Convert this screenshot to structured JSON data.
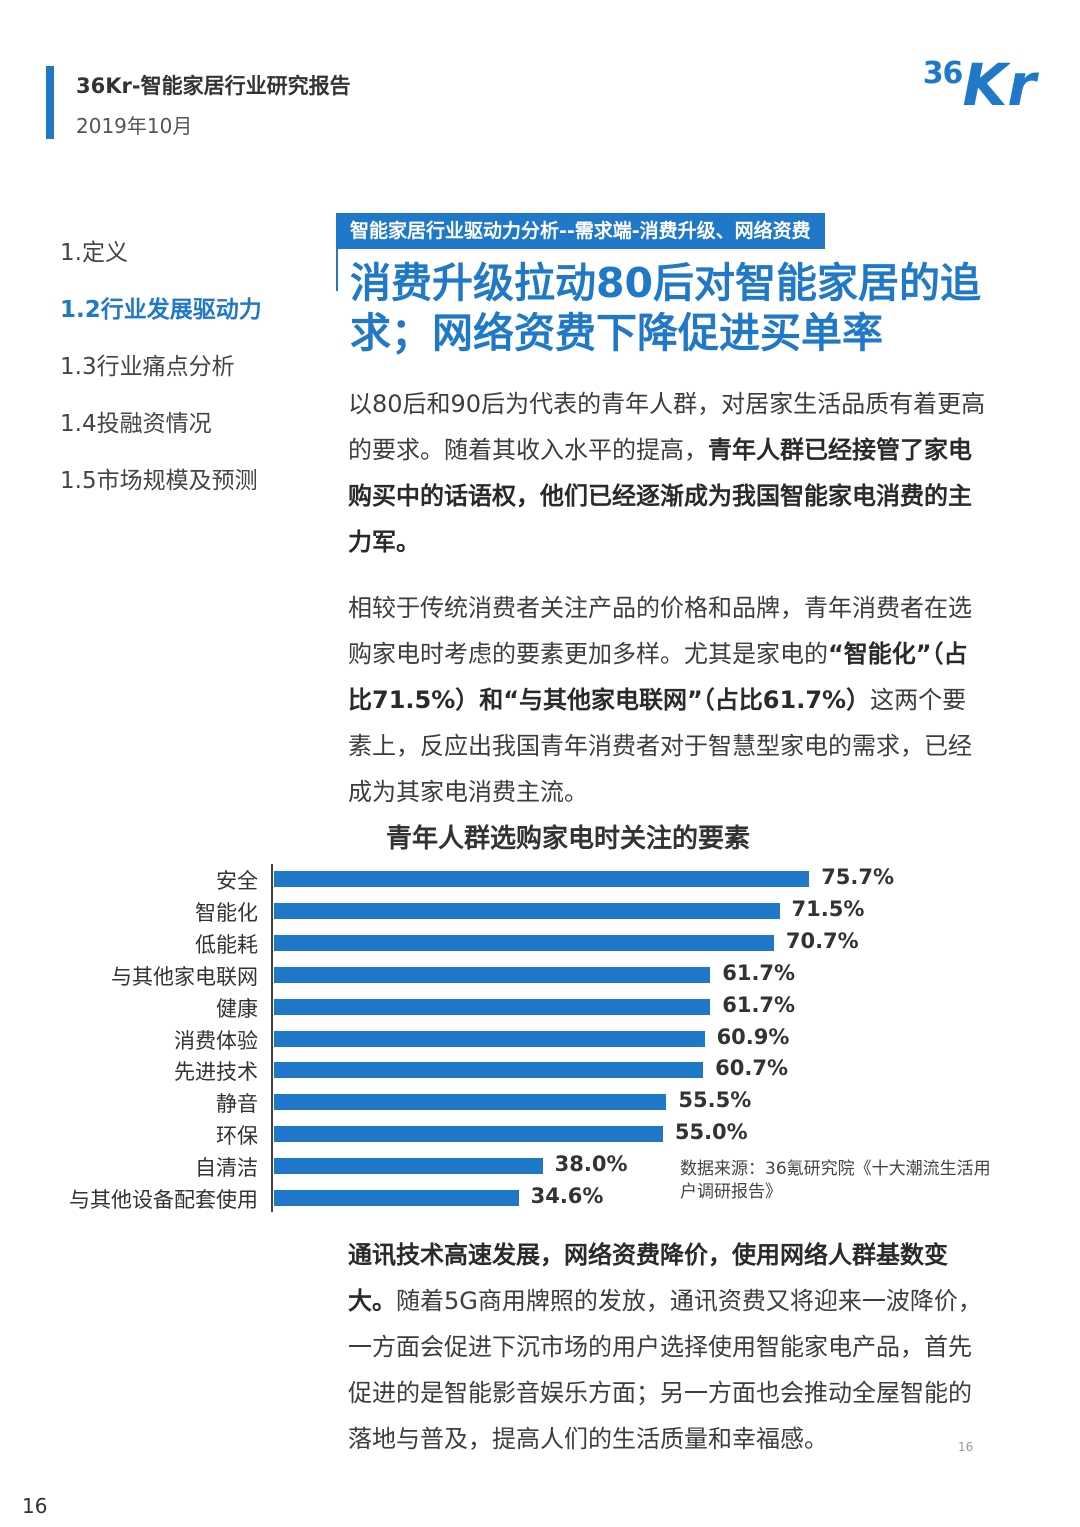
{
  "header": {
    "title": "36Kr-智能家居行业研究报告",
    "date": "2019年10月",
    "logo_number": "36",
    "logo_letters": "Kr"
  },
  "toc": {
    "items": [
      {
        "label": "1.定义"
      },
      {
        "label": "1.2行业发展驱动力"
      },
      {
        "label": "1.3行业痛点分析"
      },
      {
        "label": "1.4投融资情况"
      },
      {
        "label": "1.5市场规模及预测"
      }
    ],
    "active_index": 1
  },
  "section_tag": "智能家居行业驱动力分析--需求端-消费升级、网络资费",
  "headline": "消费升级拉动80后对智能家居的追求；网络资费下降促进买单率",
  "para1": {
    "plain": "以80后和90后为代表的青年人群，对居家生活品质有着更高的要求。随着其收入水平的提高，",
    "bold": "青年人群已经接管了家电购买中的话语权，他们已经逐渐成为我国智能家电消费的主力军。"
  },
  "para2": {
    "t1": "相较于传统消费者关注产品的价格和品牌，青年消费者在选购家电时考虑的要素更加多样。尤其是家电的",
    "b1": "“智能化”（占比71.5%）和“与其他家电联网”（占比61.7%）",
    "t2": "这两个要素上，反应出我国青年消费者对于智慧型家电的需求，已经成为其家电消费主流。"
  },
  "chart_data": {
    "type": "bar",
    "orientation": "horizontal",
    "title": "青年人群选购家电时关注的要素",
    "categories": [
      "安全",
      "智能化",
      "低能耗",
      "与其他家电联网",
      "健康",
      "消费体验",
      "先进技术",
      "静音",
      "环保",
      "自清洁",
      "与其他设备配套使用"
    ],
    "values": [
      75.7,
      71.5,
      70.7,
      61.7,
      61.7,
      60.9,
      60.7,
      55.5,
      55.0,
      38.0,
      34.6
    ],
    "labels": [
      "75.7%",
      "71.5%",
      "70.7%",
      "61.7%",
      "61.7%",
      "60.9%",
      "60.7%",
      "55.5%",
      "55.0%",
      "38.0%",
      "34.6%"
    ],
    "unit": "%",
    "bar_color": "#1f78c8",
    "source": "数据来源：36氪研究院《十大潮流生活用户调研报告》"
  },
  "para3": {
    "bold": "通讯技术高速发展，网络资费降价，使用网络人群基数变大。",
    "plain": "随着5G商用牌照的发放，通讯资费又将迎来一波降价，一方面会促进下沉市场的用户选择使用智能家电产品，首先促进的是智能影音娱乐方面；另一方面也会推动全屋智能的落地与普及，提高人们的生活质量和幸福感。"
  },
  "page_number_small": "16",
  "page_number": "16",
  "colors": {
    "accent": "#1f78c8"
  }
}
